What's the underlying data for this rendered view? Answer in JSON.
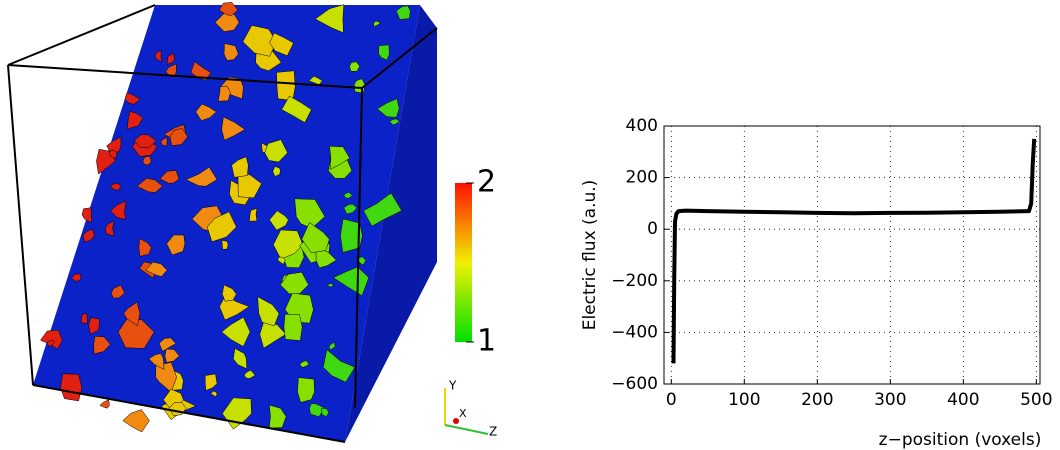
{
  "chart_data": {
    "type": "line",
    "xlabel": "z−position (voxels)",
    "ylabel": "Electric flux (a.u.)",
    "x": [
      3,
      4,
      5,
      7,
      10,
      20,
      50,
      100,
      150,
      200,
      250,
      300,
      350,
      400,
      450,
      490,
      493,
      495,
      497
    ],
    "values": [
      -520,
      -200,
      30,
      60,
      70,
      72,
      70,
      68,
      66,
      63,
      62,
      63,
      64,
      66,
      68,
      70,
      100,
      250,
      350
    ],
    "color": "#000000",
    "xlim": [
      -10,
      505
    ],
    "xticks": [
      0,
      100,
      200,
      300,
      400,
      500
    ],
    "ylim": [
      -600,
      400
    ],
    "yticks": [
      {
        "value": -600,
        "label": "−600"
      },
      {
        "value": -400,
        "label": "−400"
      },
      {
        "value": -200,
        "label": "−200"
      },
      0,
      200,
      400
    ],
    "grid": true
  },
  "render": {
    "colorbar": {
      "lim": [
        1,
        2
      ],
      "ticks": [
        1,
        2
      ]
    },
    "orientation_axes": {
      "x": "X",
      "y": "Y",
      "z": "Z"
    }
  }
}
